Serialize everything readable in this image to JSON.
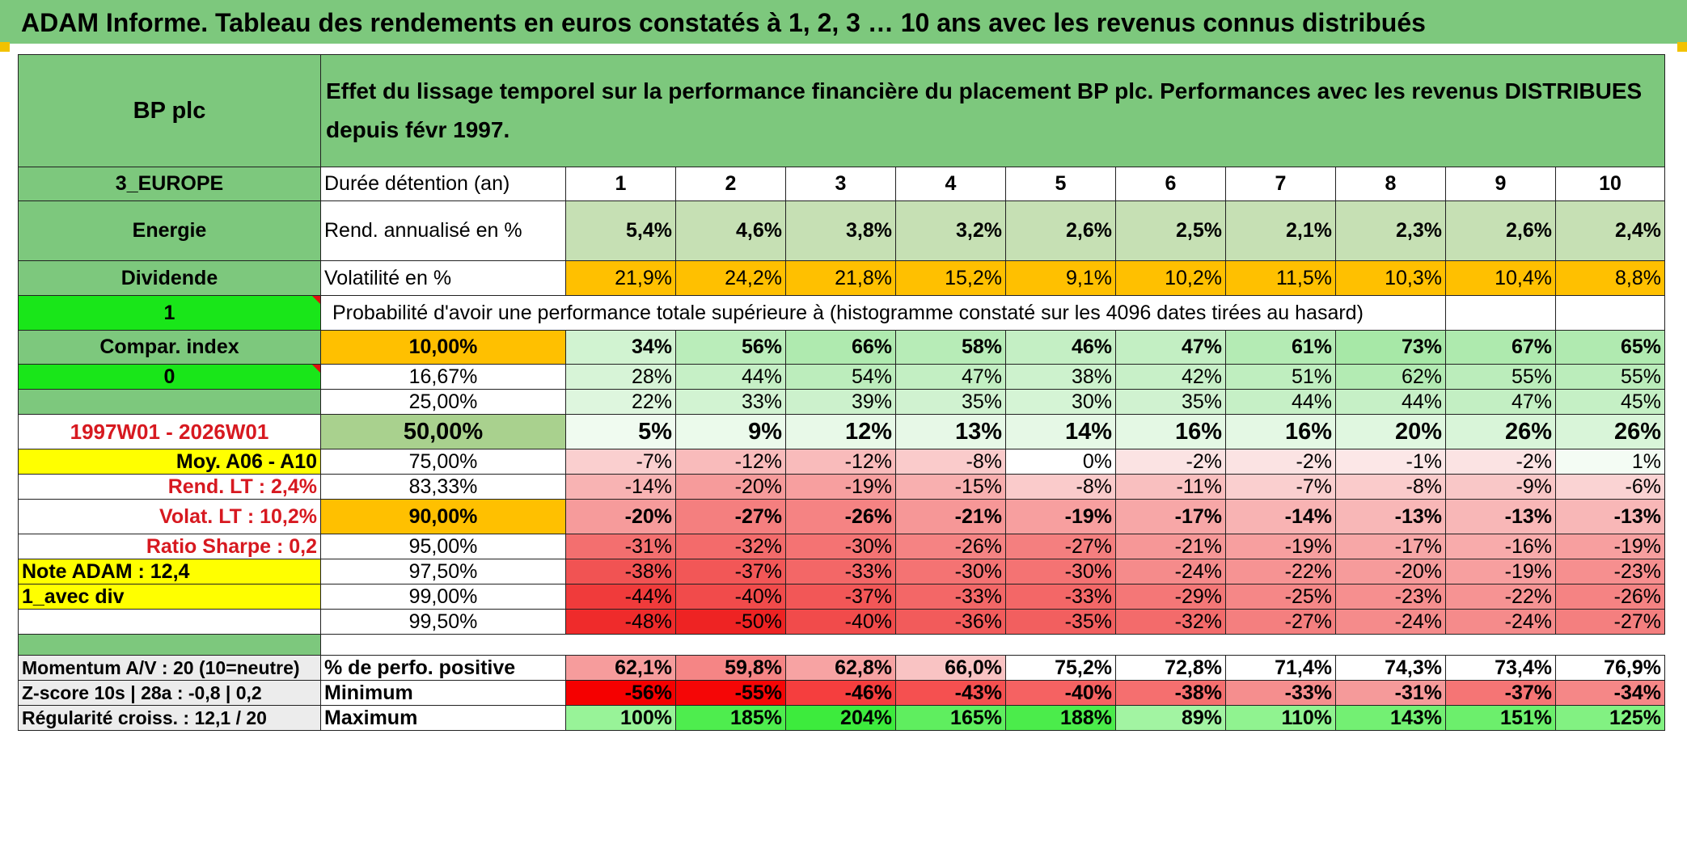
{
  "title": "ADAM Informe. Tableau des rendements en euros constatés à 1, 2, 3 … 10 ans avec les revenus connus distribués",
  "header": {
    "asset_name": "BP plc",
    "description": "Effet du lissage temporel sur la performance financière du placement BP plc. Performances avec les revenus DISTRIBUES depuis févr 1997."
  },
  "side": {
    "region": "3_EUROPE",
    "sector": "Energie",
    "income_type": "Dividende",
    "selector1": "1",
    "compar_index": "Compar. index",
    "selector2": "0",
    "period": "1997W01 - 2026W01",
    "moy": "Moy. A06 - A10",
    "rend_lt": "Rend. LT :   2,4%",
    "volat_lt": "Volat. LT :   10,2%",
    "sharpe": "Ratio Sharpe :   0,2",
    "note": "Note ADAM : 12,4",
    "mode": "1_avec div",
    "momentum": "Momentum A/V : 20 (10=neutre)",
    "zscore": "Z-score 10s | 28a : -0,8 | 0,2",
    "regularite": "Régularité croiss. : 12,1 / 20"
  },
  "labels": {
    "duration": "Durée détention (an)",
    "rend": "Rend. annualisé en %",
    "vol": "Volatilité en %",
    "prob_title": "Probabilité d'avoir une performance totale supérieure à (histogramme constaté sur les 4096 dates tirées au hasard)",
    "pct_pos": "% de perfo. positive",
    "min": "Minimum",
    "max": "Maximum"
  },
  "years": [
    "1",
    "2",
    "3",
    "4",
    "5",
    "6",
    "7",
    "8",
    "9",
    "10"
  ],
  "rend": [
    "5,4%",
    "4,6%",
    "3,8%",
    "3,2%",
    "2,6%",
    "2,5%",
    "2,1%",
    "2,3%",
    "2,6%",
    "2,4%"
  ],
  "vol": [
    "21,9%",
    "24,2%",
    "21,8%",
    "15,2%",
    "9,1%",
    "10,2%",
    "11,5%",
    "10,3%",
    "10,4%",
    "8,8%"
  ],
  "prob_rows": [
    {
      "threshold": "10,00%",
      "values": [
        "34%",
        "56%",
        "66%",
        "58%",
        "46%",
        "47%",
        "61%",
        "73%",
        "67%",
        "65%"
      ]
    },
    {
      "threshold": "16,67%",
      "values": [
        "28%",
        "44%",
        "54%",
        "47%",
        "38%",
        "42%",
        "51%",
        "62%",
        "55%",
        "55%"
      ]
    },
    {
      "threshold": "25,00%",
      "values": [
        "22%",
        "33%",
        "39%",
        "35%",
        "30%",
        "35%",
        "44%",
        "44%",
        "47%",
        "45%"
      ]
    },
    {
      "threshold": "50,00%",
      "values": [
        "5%",
        "9%",
        "12%",
        "13%",
        "14%",
        "16%",
        "16%",
        "20%",
        "26%",
        "26%"
      ]
    },
    {
      "threshold": "75,00%",
      "values": [
        "-7%",
        "-12%",
        "-12%",
        "-8%",
        "0%",
        "-2%",
        "-2%",
        "-1%",
        "-2%",
        "1%"
      ]
    },
    {
      "threshold": "83,33%",
      "values": [
        "-14%",
        "-20%",
        "-19%",
        "-15%",
        "-8%",
        "-11%",
        "-7%",
        "-8%",
        "-9%",
        "-6%"
      ]
    },
    {
      "threshold": "90,00%",
      "values": [
        "-20%",
        "-27%",
        "-26%",
        "-21%",
        "-19%",
        "-17%",
        "-14%",
        "-13%",
        "-13%",
        "-13%"
      ]
    },
    {
      "threshold": "95,00%",
      "values": [
        "-31%",
        "-32%",
        "-30%",
        "-26%",
        "-27%",
        "-21%",
        "-19%",
        "-17%",
        "-16%",
        "-19%"
      ]
    },
    {
      "threshold": "97,50%",
      "values": [
        "-38%",
        "-37%",
        "-33%",
        "-30%",
        "-30%",
        "-24%",
        "-22%",
        "-20%",
        "-19%",
        "-23%"
      ]
    },
    {
      "threshold": "99,00%",
      "values": [
        "-44%",
        "-40%",
        "-37%",
        "-33%",
        "-33%",
        "-29%",
        "-25%",
        "-23%",
        "-22%",
        "-26%"
      ]
    },
    {
      "threshold": "99,50%",
      "values": [
        "-48%",
        "-50%",
        "-40%",
        "-36%",
        "-35%",
        "-32%",
        "-27%",
        "-24%",
        "-24%",
        "-27%"
      ]
    }
  ],
  "pct_pos": [
    "62,1%",
    "59,8%",
    "62,8%",
    "66,0%",
    "75,2%",
    "72,8%",
    "71,4%",
    "74,3%",
    "73,4%",
    "76,9%"
  ],
  "min": [
    "-56%",
    "-55%",
    "-46%",
    "-43%",
    "-40%",
    "-38%",
    "-33%",
    "-31%",
    "-37%",
    "-34%"
  ],
  "max": [
    "100%",
    "185%",
    "204%",
    "165%",
    "188%",
    "89%",
    "110%",
    "143%",
    "151%",
    "125%"
  ],
  "colors": {
    "header_green": "#7dc87d",
    "bright_green": "#19e619",
    "highlight_yellow": "#ffff00",
    "highlight_orange": "#ffc000",
    "label_red": "#d71920"
  }
}
